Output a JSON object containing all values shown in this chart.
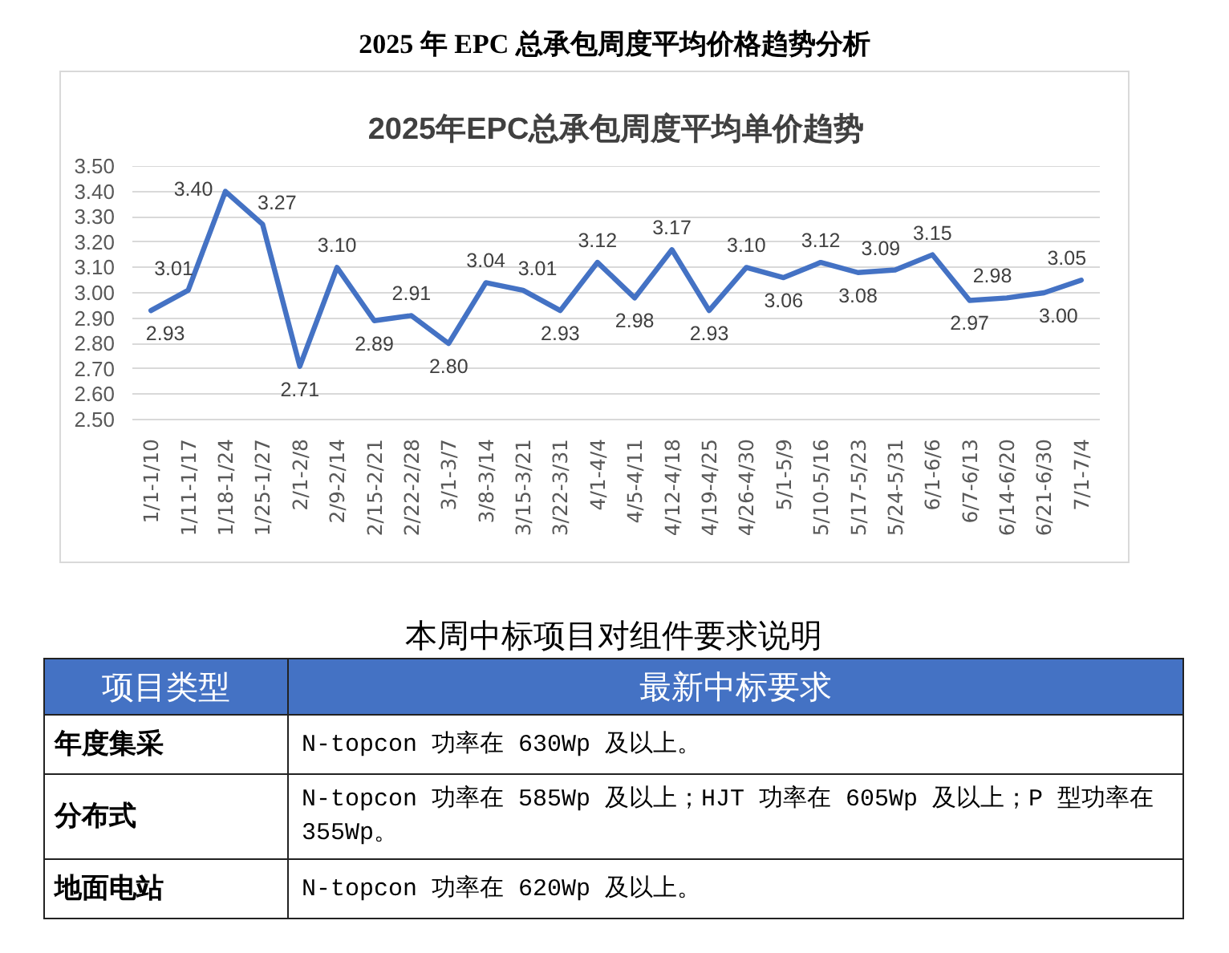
{
  "chart_data": [
    {
      "type": "line",
      "title": "2025 年 EPC 总承包周度平均价格趋势分析",
      "subtitle": "2025年EPC总承包周度平均单价趋势",
      "categories": [
        "1/1-1/10",
        "1/11-1/17",
        "1/18-1/24",
        "1/25-1/27",
        "2/1-2/8",
        "2/9-2/14",
        "2/15-2/21",
        "2/22-2/28",
        "3/1-3/7",
        "3/8-3/14",
        "3/15-3/21",
        "3/22-3/31",
        "4/1-4/4",
        "4/5-4/11",
        "4/12-4/18",
        "4/19-4/25",
        "4/26-4/30",
        "5/1-5/9",
        "5/10-5/16",
        "5/17-5/23",
        "5/24-5/31",
        "6/1-6/6",
        "6/7-6/13",
        "6/14-6/20",
        "6/21-6/30",
        "7/1-7/4"
      ],
      "series": [
        {
          "color": "#4472c4",
          "values": [
            2.93,
            3.01,
            3.4,
            3.27,
            2.71,
            3.1,
            2.89,
            2.91,
            2.8,
            3.04,
            3.01,
            2.93,
            3.12,
            2.98,
            3.17,
            2.93,
            3.1,
            3.06,
            3.12,
            3.08,
            3.09,
            3.15,
            2.97,
            2.98,
            3.0,
            3.05
          ],
          "value_labels": [
            "2.93",
            "3.01",
            "3.40",
            "3.27",
            "2.71",
            "3.10",
            "2.89",
            "2.91",
            "2.80",
            "3.04",
            "3.01",
            "2.93",
            "3.12",
            "2.98",
            "3.17",
            "2.93",
            "3.10",
            "3.06",
            "3.12",
            "3.08",
            "3.09",
            "3.15",
            "2.97",
            "2.98",
            "3.00",
            "3.05"
          ]
        }
      ],
      "ylim": [
        2.5,
        3.5
      ],
      "yticks": [
        {
          "value": 2.5,
          "label": "2.50"
        },
        {
          "value": 2.6,
          "label": "2.60"
        },
        {
          "value": 2.7,
          "label": "2.70"
        },
        {
          "value": 2.8,
          "label": "2.80"
        },
        {
          "value": 2.9,
          "label": "2.90"
        },
        {
          "value": 3.0,
          "label": "3.00"
        },
        {
          "value": 3.1,
          "label": "3.10"
        },
        {
          "value": 3.2,
          "label": "3.20"
        },
        {
          "value": 3.3,
          "label": "3.30"
        },
        {
          "value": 3.4,
          "label": "3.40"
        },
        {
          "value": 3.5,
          "label": "3.50"
        }
      ],
      "grid": "y"
    },
    {
      "type": "other",
      "title": "本周中标项目对组件要求说明",
      "categories": [
        "项目类型",
        "最新中标要求"
      ],
      "y_categories": [
        "年度集采",
        "分布式",
        "地面电站"
      ],
      "annotations": [
        "N-topcon 功率在 630Wp 及以上。",
        "N-topcon 功率在 585Wp 及以上；HJT 功率在 605Wp 及以上；P 型功率在 355Wp。",
        "N-topcon 功率在 620Wp 及以上。"
      ]
    }
  ]
}
